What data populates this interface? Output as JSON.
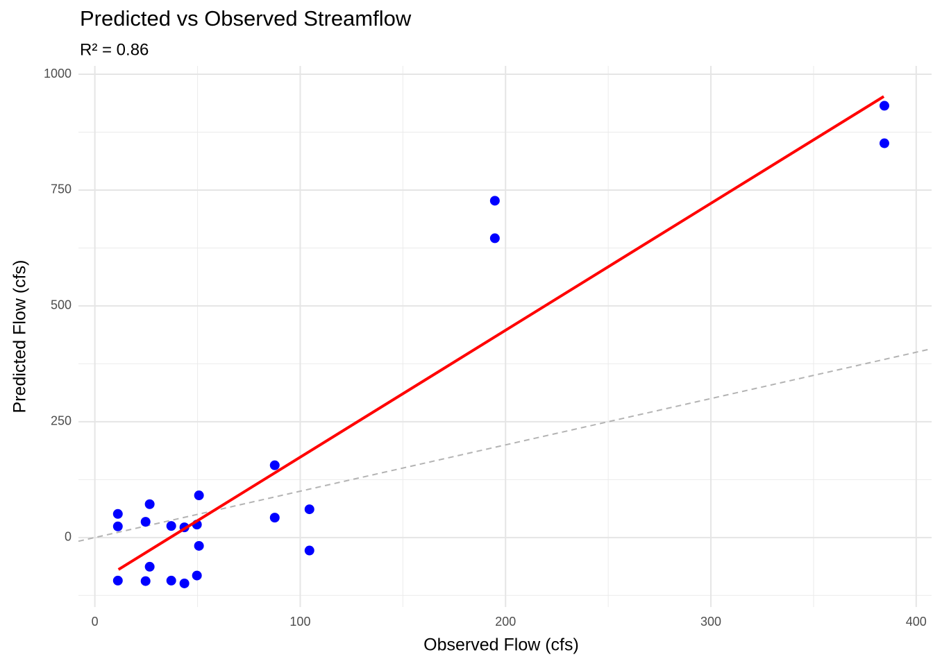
{
  "chart_data": {
    "type": "scatter",
    "title": "Predicted vs Observed Streamflow",
    "subtitle": "R² = 0.86",
    "x_label": "Observed Flow (cfs)",
    "y_label": "Predicted Flow (cfs)",
    "x": [
      11.2,
      11.2,
      11.2,
      26.7,
      26.7,
      24.7,
      24.7,
      37.2,
      37.2,
      43.6,
      43.6,
      49.7,
      49.7,
      50.7,
      50.7,
      87.6,
      87.6,
      104.5,
      104.5,
      194.8,
      194.8,
      384.5,
      384.5
    ],
    "y": [
      51,
      24,
      -93,
      72,
      -63,
      34,
      -94,
      25,
      -93,
      22,
      -99,
      28,
      -82,
      91,
      -18,
      156,
      43,
      61,
      -28,
      727,
      646,
      932,
      851
    ],
    "color": "#0000ff",
    "fit_line": {
      "x": [
        11.5,
        384.2
      ],
      "y": [
        -69,
        952
      ],
      "color": "#ff0000"
    },
    "reference_line": {
      "x": [
        -8,
        407.5
      ],
      "y": [
        -8,
        407.5
      ],
      "color": "#b3b3b3"
    },
    "xlim": [
      -8,
      407.5
    ],
    "ylim": [
      -150,
      1018
    ],
    "xticks": [
      0,
      100,
      200,
      300,
      400
    ],
    "yticks": [
      0,
      250,
      500,
      750,
      1000
    ],
    "x_minor_grid": [
      50,
      150,
      250,
      350
    ],
    "y_minor_grid": [
      -125,
      125,
      375,
      625,
      875
    ],
    "grid": true
  }
}
